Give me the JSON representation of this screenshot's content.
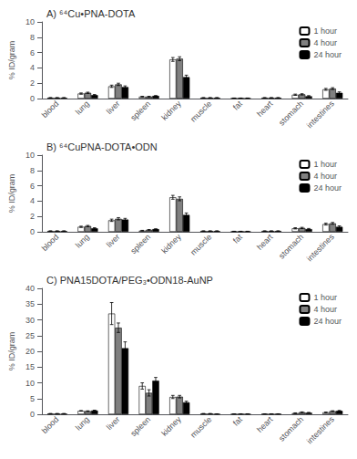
{
  "chart_data": [
    {
      "type": "bar",
      "title": "A) ⁶⁴Cu•PNA-DOTA",
      "ylabel": "% ID/gram",
      "categories": [
        "blood",
        "lung",
        "liver",
        "spleen",
        "kidney",
        "muscle",
        "fat",
        "heart",
        "stomach",
        "intestines"
      ],
      "series": [
        {
          "name": "1 hour",
          "color": "#ffffff",
          "values": [
            0.1,
            0.65,
            1.6,
            0.25,
            5.1,
            0.1,
            0.05,
            0.1,
            0.5,
            1.2
          ],
          "errors": [
            0.03,
            0.08,
            0.15,
            0.04,
            0.25,
            0.03,
            0.02,
            0.03,
            0.08,
            0.12
          ]
        },
        {
          "name": "4 hour",
          "color": "#808080",
          "values": [
            0.1,
            0.75,
            1.85,
            0.25,
            5.2,
            0.1,
            0.05,
            0.1,
            0.55,
            1.3
          ],
          "errors": [
            0.03,
            0.08,
            0.15,
            0.04,
            0.25,
            0.03,
            0.02,
            0.03,
            0.08,
            0.12
          ]
        },
        {
          "name": "24 hour",
          "color": "#000000",
          "values": [
            0.1,
            0.45,
            1.5,
            0.35,
            2.8,
            0.1,
            0.05,
            0.1,
            0.3,
            0.75
          ],
          "errors": [
            0.03,
            0.08,
            0.15,
            0.04,
            0.25,
            0.03,
            0.02,
            0.03,
            0.08,
            0.12
          ]
        }
      ],
      "ylim": [
        0,
        10
      ],
      "yticks": [
        0,
        2,
        4,
        6,
        8,
        10
      ],
      "legend": "upper right"
    },
    {
      "type": "bar",
      "title": "B) ⁶⁴CuPNA-DOTA•ODN",
      "ylabel": "% ID/gram",
      "categories": [
        "blood",
        "lung",
        "liver",
        "spleen",
        "kidney",
        "muscle",
        "fat",
        "heart",
        "stomach",
        "intestines"
      ],
      "series": [
        {
          "name": "1 hour",
          "color": "#ffffff",
          "values": [
            0.1,
            0.65,
            1.5,
            0.15,
            4.5,
            0.1,
            0.05,
            0.1,
            0.45,
            1.0
          ],
          "errors": [
            0.03,
            0.08,
            0.15,
            0.04,
            0.25,
            0.03,
            0.02,
            0.03,
            0.08,
            0.12
          ]
        },
        {
          "name": "4 hour",
          "color": "#808080",
          "values": [
            0.1,
            0.75,
            1.7,
            0.25,
            4.3,
            0.1,
            0.05,
            0.1,
            0.5,
            1.1
          ],
          "errors": [
            0.03,
            0.08,
            0.15,
            0.04,
            0.25,
            0.03,
            0.02,
            0.03,
            0.08,
            0.12
          ]
        },
        {
          "name": "24 hour",
          "color": "#000000",
          "values": [
            0.1,
            0.45,
            1.6,
            0.35,
            2.2,
            0.1,
            0.05,
            0.1,
            0.35,
            0.65
          ],
          "errors": [
            0.03,
            0.08,
            0.15,
            0.04,
            0.25,
            0.03,
            0.02,
            0.03,
            0.08,
            0.12
          ]
        }
      ],
      "ylim": [
        0,
        10
      ],
      "yticks": [
        0,
        2,
        4,
        6,
        8,
        10
      ],
      "legend": "upper right"
    },
    {
      "type": "bar",
      "title": "C) PNA15DOTA/PEG₃•ODN18-AuNP",
      "ylabel": "% ID/gram",
      "categories": [
        "blood",
        "lung",
        "liver",
        "spleen",
        "kidney",
        "muscle",
        "fat",
        "heart",
        "stomach",
        "intestines"
      ],
      "series": [
        {
          "name": "1 hour",
          "color": "#ffffff",
          "values": [
            0.2,
            1.1,
            32.0,
            9.0,
            5.5,
            0.2,
            0.1,
            0.1,
            0.35,
            0.6
          ],
          "errors": [
            0.05,
            0.1,
            3.5,
            1.0,
            0.5,
            0.05,
            0.05,
            0.05,
            0.1,
            0.1
          ]
        },
        {
          "name": "4 hour",
          "color": "#808080",
          "values": [
            0.2,
            1.0,
            27.5,
            6.8,
            5.6,
            0.2,
            0.1,
            0.1,
            0.65,
            1.0
          ],
          "errors": [
            0.05,
            0.1,
            1.5,
            1.0,
            0.4,
            0.05,
            0.05,
            0.05,
            0.1,
            0.12
          ]
        },
        {
          "name": "24 hour",
          "color": "#000000",
          "values": [
            0.2,
            1.2,
            21.0,
            10.7,
            3.8,
            0.1,
            0.1,
            0.1,
            0.5,
            1.1
          ],
          "errors": [
            0.05,
            0.1,
            2.0,
            1.0,
            0.35,
            0.05,
            0.05,
            0.05,
            0.1,
            0.12
          ]
        }
      ],
      "ylim": [
        0,
        40
      ],
      "yticks": [
        0,
        5,
        10,
        15,
        20,
        25,
        30,
        35,
        40
      ],
      "legend": "upper right"
    }
  ]
}
